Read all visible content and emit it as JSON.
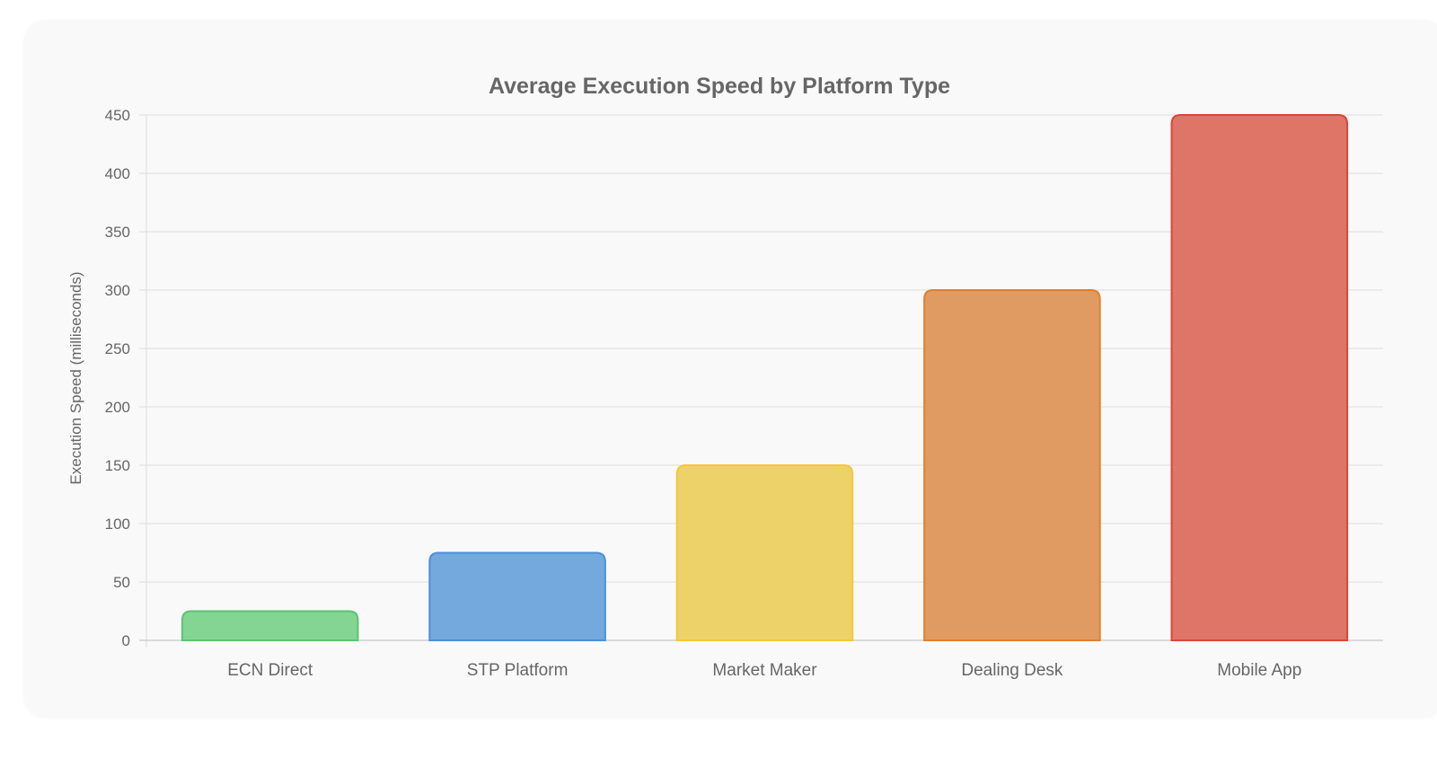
{
  "chart_data": {
    "type": "bar",
    "title": "Average Execution Speed by Platform Type",
    "xlabel": "",
    "ylabel": "Execution Speed (milliseconds)",
    "categories": [
      "ECN Direct",
      "STP Platform",
      "Market Maker",
      "Dealing Desk",
      "Mobile App"
    ],
    "values": [
      25,
      75,
      150,
      300,
      450
    ],
    "ylim": [
      0,
      450
    ],
    "yticks": [
      0,
      50,
      100,
      150,
      200,
      250,
      300,
      350,
      400,
      450
    ],
    "grid": true,
    "legend": "none",
    "colors": {
      "fill": [
        "#84d594",
        "#74a9dd",
        "#edd26a",
        "#e09b62",
        "#de7567"
      ],
      "border": [
        "#5cc46f",
        "#4a90d9",
        "#f0c93a",
        "#e07f30",
        "#d9473a"
      ]
    }
  }
}
